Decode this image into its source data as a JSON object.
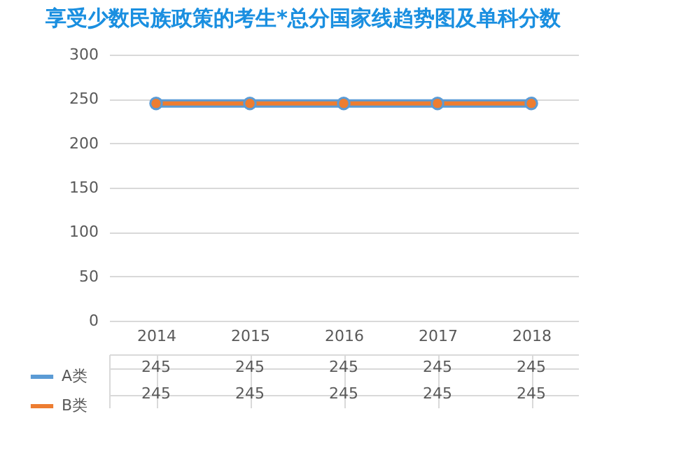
{
  "chart_data": {
    "type": "line",
    "title": "享受少数民族政策的考生*总分国家线趋势图及单科分数",
    "categories": [
      "2014",
      "2015",
      "2016",
      "2017",
      "2018"
    ],
    "series": [
      {
        "name": "A类",
        "color": "#5b9bd5",
        "values": [
          245,
          245,
          245,
          245,
          245
        ]
      },
      {
        "name": "B类",
        "color": "#ed7d31",
        "values": [
          245,
          245,
          245,
          245,
          245
        ]
      }
    ],
    "ylim": [
      0,
      300
    ],
    "yticks": [
      0,
      50,
      100,
      150,
      200,
      250,
      300
    ],
    "grid": "y",
    "legend": "bottom left",
    "marker": "circle",
    "line_style": "solid",
    "data_labels": true
  }
}
